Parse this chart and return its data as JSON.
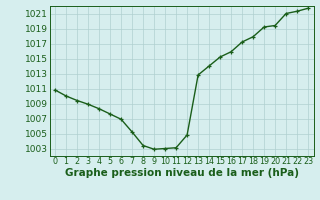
{
  "x": [
    0,
    1,
    2,
    3,
    4,
    5,
    6,
    7,
    8,
    9,
    10,
    11,
    12,
    13,
    14,
    15,
    16,
    17,
    18,
    19,
    20,
    21,
    22,
    23
  ],
  "y": [
    1010.8,
    1010.0,
    1009.4,
    1008.9,
    1008.3,
    1007.6,
    1006.9,
    1005.2,
    1003.4,
    1002.9,
    1003.0,
    1003.1,
    1004.8,
    1012.8,
    1014.0,
    1015.2,
    1015.9,
    1017.2,
    1017.9,
    1019.2,
    1019.4,
    1021.0,
    1021.3,
    1021.7
  ],
  "line_color": "#1a5e1a",
  "marker": "+",
  "bg_color": "#d6eeee",
  "grid_color": "#b0d0d0",
  "axis_color": "#1a5e1a",
  "label_color": "#1a5e1a",
  "xlabel": "Graphe pression niveau de la mer (hPa)",
  "ylim": [
    1002.0,
    1022.0
  ],
  "yticks": [
    1003,
    1005,
    1007,
    1009,
    1011,
    1013,
    1015,
    1017,
    1019,
    1021
  ],
  "xticks": [
    0,
    1,
    2,
    3,
    4,
    5,
    6,
    7,
    8,
    9,
    10,
    11,
    12,
    13,
    14,
    15,
    16,
    17,
    18,
    19,
    20,
    21,
    22,
    23
  ],
  "xlabel_fontsize": 7.5,
  "tick_fontsize": 6.5,
  "xtick_fontsize": 5.8,
  "line_width": 1.0,
  "marker_size": 3.5,
  "marker_edge_width": 0.9
}
